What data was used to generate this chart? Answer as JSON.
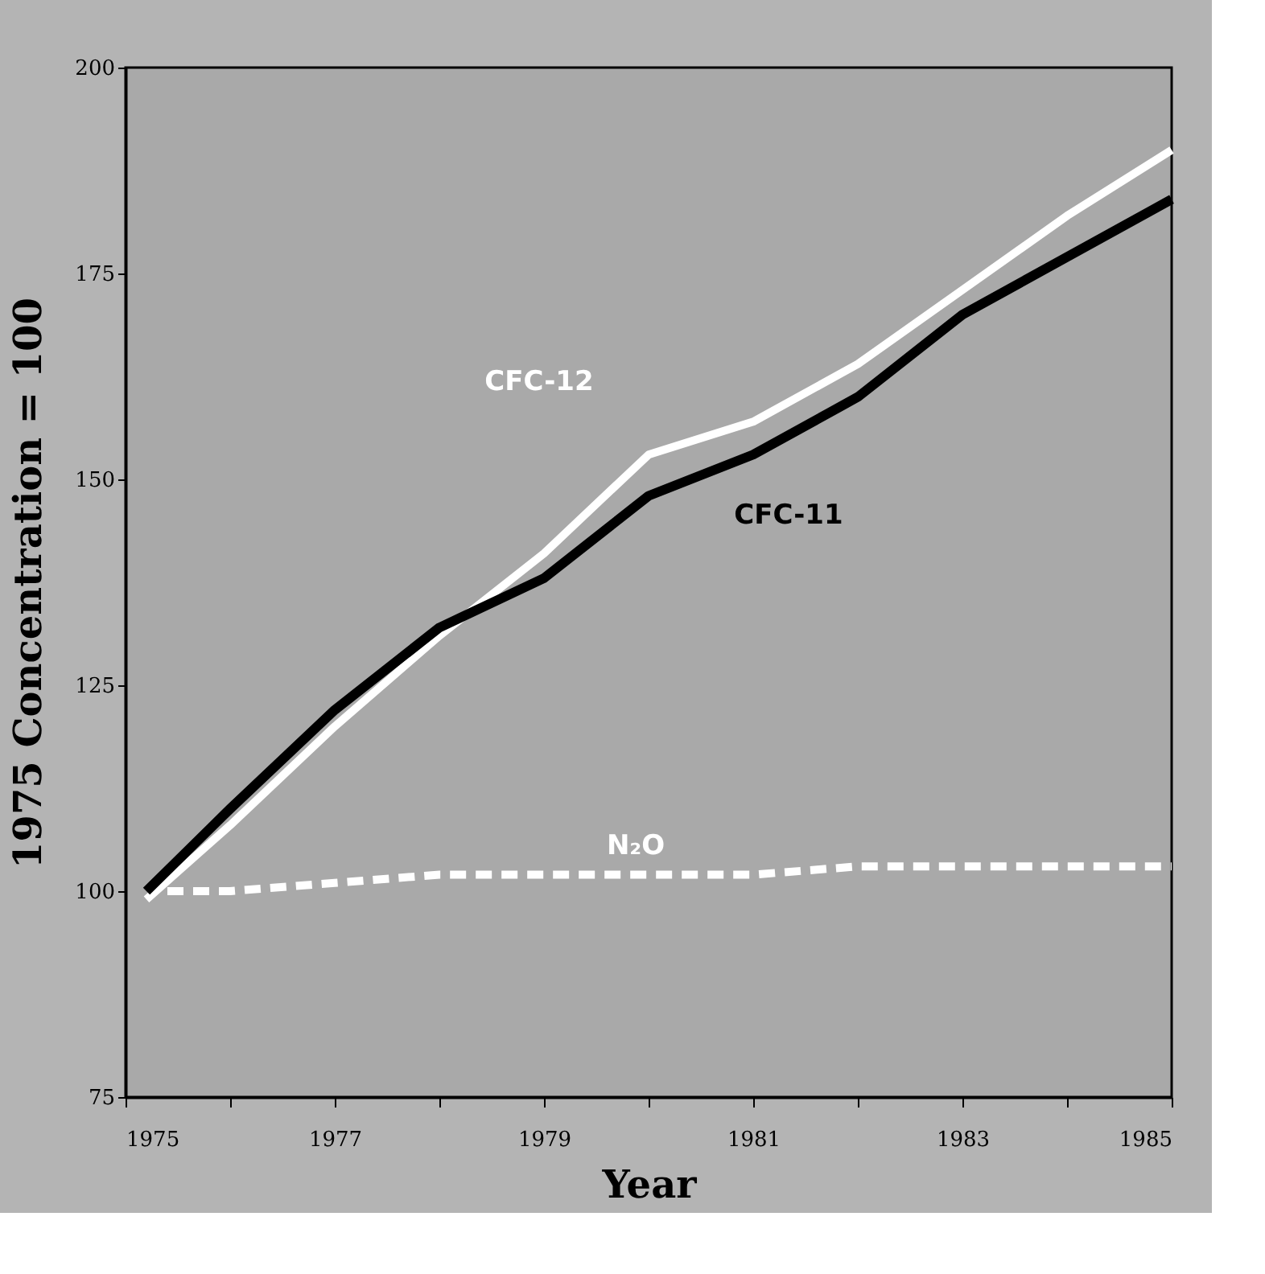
{
  "chart_data": {
    "type": "line",
    "xlabel": "Year",
    "ylabel": "1975  Concentration  =  100",
    "xlim": [
      1975,
      1985
    ],
    "ylim": [
      75,
      200
    ],
    "xticks": [
      1975,
      {
        "value": 1976,
        "label": null
      },
      1977,
      {
        "value": 1978,
        "label": null
      },
      1979,
      {
        "value": 1980,
        "label": null
      },
      1981,
      {
        "value": 1982,
        "label": null
      },
      1983,
      {
        "value": 1984,
        "label": null
      },
      1985
    ],
    "yticks": [
      75,
      100,
      125,
      150,
      175,
      200
    ],
    "grid": false,
    "legend": false,
    "marker": "none",
    "series": [
      {
        "name": "CFC-12",
        "color": "#ffffff",
        "line_style": "solid",
        "x": [
          1975.2,
          1976,
          1977,
          1978,
          1979,
          1980,
          1981,
          1982,
          1983,
          1984,
          1985
        ],
        "values": [
          99,
          108,
          120,
          131,
          141,
          153,
          157,
          164,
          173,
          182,
          190
        ]
      },
      {
        "name": "CFC-11",
        "color": "#000000",
        "line_style": "solid",
        "x": [
          1975.2,
          1976,
          1977,
          1978,
          1979,
          1980,
          1981,
          1982,
          1983,
          1984,
          1985
        ],
        "values": [
          100,
          110,
          122,
          132,
          138,
          148,
          153,
          160,
          170,
          177,
          184
        ]
      },
      {
        "name": "N₂O",
        "color": "#ffffff",
        "line_style": "dashed",
        "x": [
          1975.4,
          1976,
          1977,
          1978,
          1979,
          1980,
          1981,
          1982,
          1983,
          1984,
          1985
        ],
        "values": [
          100,
          100,
          101,
          102,
          102,
          102,
          102,
          103,
          103,
          103,
          103
        ]
      }
    ]
  }
}
